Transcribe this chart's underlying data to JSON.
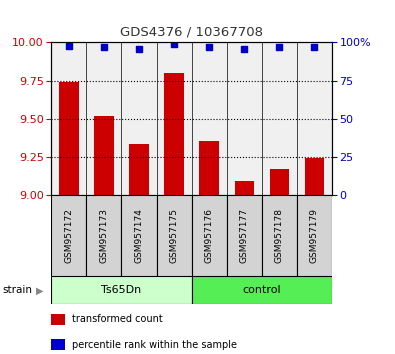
{
  "title": "GDS4376 / 10367708",
  "samples": [
    "GSM957172",
    "GSM957173",
    "GSM957174",
    "GSM957175",
    "GSM957176",
    "GSM957177",
    "GSM957178",
    "GSM957179"
  ],
  "transformed_counts": [
    9.74,
    9.52,
    9.33,
    9.8,
    9.35,
    9.09,
    9.17,
    9.24
  ],
  "percentile_ranks": [
    98,
    97,
    96,
    99,
    97,
    96,
    97,
    97
  ],
  "ylim_left": [
    9.0,
    10.0
  ],
  "ylim_right": [
    0,
    100
  ],
  "yticks_left": [
    9.0,
    9.25,
    9.5,
    9.75,
    10.0
  ],
  "yticks_right": [
    0,
    25,
    50,
    75,
    100
  ],
  "bar_color": "#cc0000",
  "dot_color": "#0000cc",
  "groups": [
    {
      "label": "Ts65Dn",
      "start": 0,
      "end": 4,
      "color": "#ccffcc"
    },
    {
      "label": "control",
      "start": 4,
      "end": 8,
      "color": "#55ee55"
    }
  ],
  "group_label": "strain",
  "baseline": 9.0,
  "background_color": "#ffffff",
  "tick_label_color_left": "#cc0000",
  "tick_label_color_right": "#0000cc",
  "title_color": "#333333",
  "grid_dotted_at": [
    9.25,
    9.5,
    9.75
  ],
  "plot_bg": "#f0f0f0",
  "cell_bg": "#d3d3d3"
}
